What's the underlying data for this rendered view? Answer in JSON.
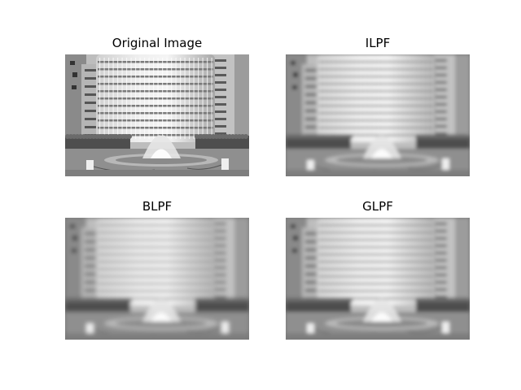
{
  "figure": {
    "panels": [
      {
        "id": "original",
        "title": "Original Image",
        "blur": 0
      },
      {
        "id": "ilpf",
        "title": "ILPF",
        "blur": 2.2
      },
      {
        "id": "blpf",
        "title": "BLPF",
        "blur": 2.6
      },
      {
        "id": "glpf",
        "title": "GLPF",
        "blur": 2.4
      }
    ]
  }
}
